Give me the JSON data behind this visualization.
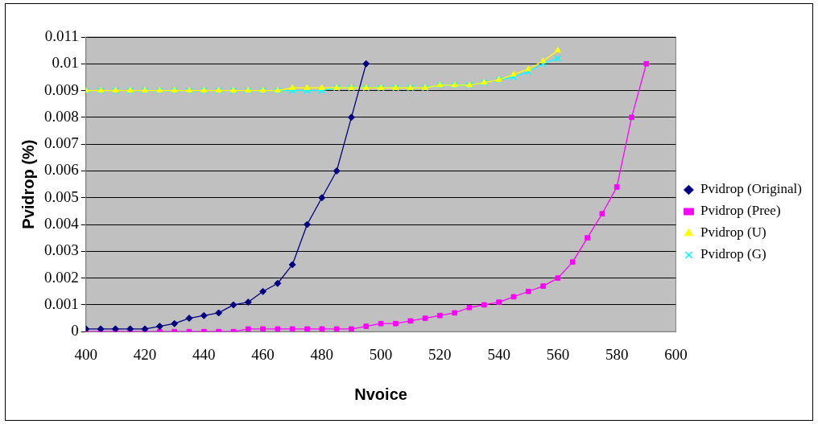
{
  "chart_data": {
    "type": "line",
    "xlabel": "Nvoice",
    "ylabel": "Pvidrop (%)",
    "xlim": [
      400,
      600
    ],
    "xticks": [
      400,
      420,
      440,
      460,
      480,
      500,
      520,
      540,
      560,
      580,
      600
    ],
    "ylim": [
      0,
      0.011
    ],
    "yticks": [
      0,
      0.001,
      0.002,
      0.003,
      0.004,
      0.005,
      0.006,
      0.007,
      0.008,
      0.009,
      0.01,
      0.011
    ],
    "grid": "y",
    "legend": "right",
    "series": [
      {
        "name": "Pvidrop (Original)",
        "color": "#000080",
        "marker": "diamond",
        "x": [
          400,
          405,
          410,
          415,
          420,
          425,
          430,
          435,
          440,
          445,
          450,
          455,
          460,
          465,
          470,
          475,
          480,
          485,
          490,
          495
        ],
        "values": [
          0.0001,
          0.0001,
          0.0001,
          0.0001,
          0.0001,
          0.0002,
          0.0003,
          0.0005,
          0.0006,
          0.0007,
          0.001,
          0.0011,
          0.0015,
          0.0018,
          0.0025,
          0.004,
          0.005,
          0.006,
          0.008,
          0.01
        ]
      },
      {
        "name": "Pvidrop (Pree)",
        "color": "#ff00ff",
        "marker": "square",
        "x": [
          400,
          405,
          410,
          415,
          420,
          425,
          430,
          435,
          440,
          445,
          450,
          455,
          460,
          465,
          470,
          475,
          480,
          485,
          490,
          495,
          500,
          505,
          510,
          515,
          520,
          525,
          530,
          535,
          540,
          545,
          550,
          555,
          560,
          565,
          570,
          575,
          580,
          585,
          590
        ],
        "values": [
          0,
          0,
          0,
          0,
          0,
          0,
          0,
          0,
          0,
          0,
          0,
          0.0001,
          0.0001,
          0.0001,
          0.0001,
          0.0001,
          0.0001,
          0.0001,
          0.0001,
          0.0002,
          0.0003,
          0.0003,
          0.0004,
          0.0005,
          0.0006,
          0.0007,
          0.0009,
          0.001,
          0.0011,
          0.0013,
          0.0015,
          0.0017,
          0.002,
          0.0026,
          0.0035,
          0.0044,
          0.0054,
          0.008,
          0.01
        ]
      },
      {
        "name": "Pvidrop (U)",
        "color": "#ffff00",
        "marker": "triangle",
        "x": [
          400,
          405,
          410,
          415,
          420,
          425,
          430,
          435,
          440,
          445,
          450,
          455,
          460,
          465,
          470,
          475,
          480,
          485,
          490,
          495,
          500,
          505,
          510,
          515,
          520,
          525,
          530,
          535,
          540,
          545,
          550,
          555,
          560
        ],
        "values": [
          0.009,
          0.009,
          0.009,
          0.009,
          0.009,
          0.009,
          0.009,
          0.009,
          0.009,
          0.009,
          0.009,
          0.009,
          0.009,
          0.009,
          0.0091,
          0.0091,
          0.0091,
          0.0091,
          0.0091,
          0.0091,
          0.0091,
          0.0091,
          0.0091,
          0.0091,
          0.0092,
          0.0092,
          0.0092,
          0.0093,
          0.0094,
          0.0096,
          0.0098,
          0.0101,
          0.0105
        ]
      },
      {
        "name": "Pvidrop (G)",
        "color": "#00ffff",
        "marker": "cross",
        "x": [
          400,
          405,
          410,
          415,
          420,
          425,
          430,
          435,
          440,
          445,
          450,
          455,
          460,
          465,
          470,
          475,
          480,
          485,
          490,
          495,
          500,
          505,
          510,
          515,
          520,
          525,
          530,
          535,
          540,
          545,
          550,
          555,
          560
        ],
        "values": [
          0.009,
          0.009,
          0.009,
          0.009,
          0.009,
          0.009,
          0.009,
          0.009,
          0.009,
          0.009,
          0.009,
          0.009,
          0.009,
          0.009,
          0.009,
          0.009,
          0.009,
          0.0091,
          0.0091,
          0.0091,
          0.0091,
          0.0091,
          0.0091,
          0.0091,
          0.0092,
          0.0092,
          0.0092,
          0.0093,
          0.0094,
          0.0095,
          0.0097,
          0.01,
          0.0102
        ]
      }
    ]
  }
}
